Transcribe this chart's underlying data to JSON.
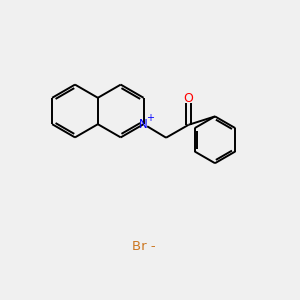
{
  "background_color": "#f0f0f0",
  "bond_color": "#000000",
  "nitrogen_color": "#0000ff",
  "oxygen_color": "#ff0000",
  "bromine_color": "#cc7722",
  "bromine_text": "Br -",
  "figsize": [
    3.0,
    3.0
  ],
  "dpi": 100
}
